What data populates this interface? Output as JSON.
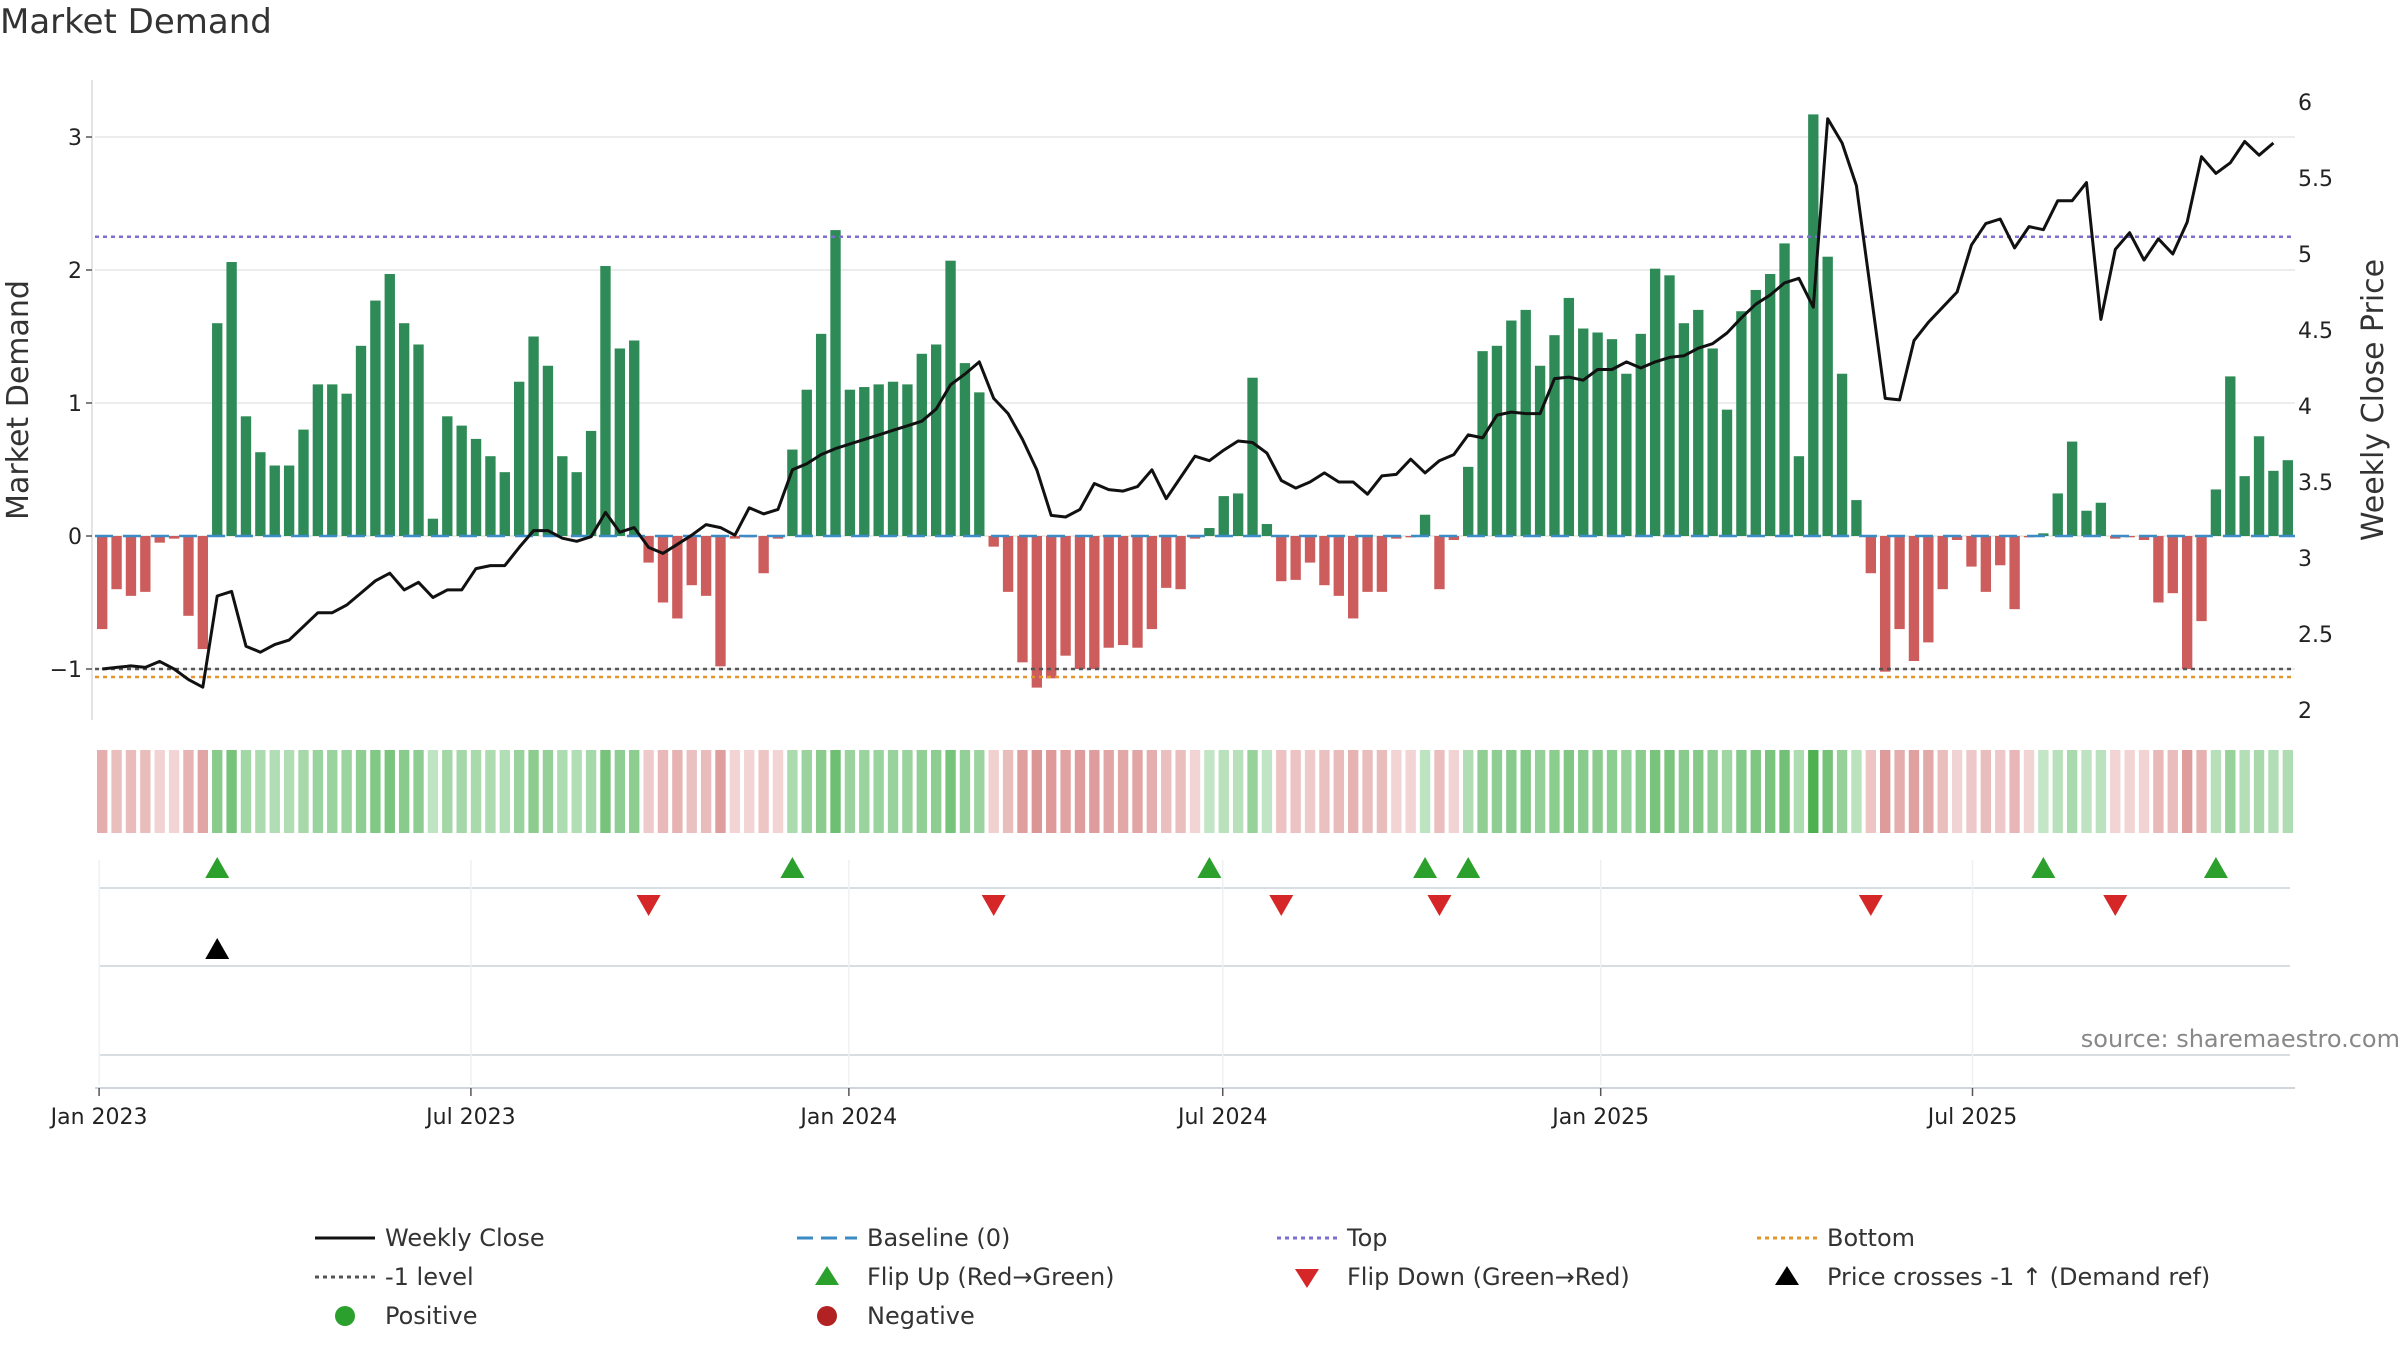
{
  "title": "Market Demand",
  "source": "source: sharemaestro.com",
  "legend": [
    {
      "label": "Weekly Close",
      "kind": "line",
      "color": "#111111"
    },
    {
      "label": "Baseline (0)",
      "kind": "dash",
      "color": "#3b8bc6"
    },
    {
      "label": "Top",
      "kind": "dot",
      "color": "#7b6fd0"
    },
    {
      "label": "Bottom",
      "kind": "dot",
      "color": "#e3952b"
    },
    {
      "label": "-1 level",
      "kind": "dot",
      "color": "#555555"
    },
    {
      "label": "Flip Up (Red→Green)",
      "kind": "tri-up",
      "color": "#2ca02c"
    },
    {
      "label": "Flip Down (Green→Red)",
      "kind": "tri-down",
      "color": "#d62728"
    },
    {
      "label": "Price crosses -1 ↑ (Demand ref)",
      "kind": "tri-up",
      "color": "#000000"
    },
    {
      "label": "Positive",
      "kind": "circle",
      "color": "#2ca02c"
    },
    {
      "label": "Negative",
      "kind": "circle",
      "color": "#b22222"
    }
  ],
  "chart_data": {
    "type": "bar",
    "title": "Market Demand",
    "ylabel": "Market Demand",
    "y2label": "Weekly Close Price",
    "ylim": [
      -1.35,
      3.4
    ],
    "y2lim": [
      2.0,
      6.15
    ],
    "yticks": [
      "−1",
      "0",
      "1",
      "2",
      "3"
    ],
    "y2ticks": [
      "2",
      "2.5",
      "3",
      "3.5",
      "4",
      "4.5",
      "5",
      "5.5",
      "6"
    ],
    "xticks": [
      "Jan 2023",
      "Jul 2023",
      "Jan 2024",
      "Jul 2024",
      "Jan 2025",
      "Jul 2025"
    ],
    "reference_lines": {
      "baseline": 0,
      "top": 2.25,
      "bottom": -1.06,
      "minus_one": -1
    },
    "grid": true,
    "colors": {
      "positive": "#2e8b57",
      "negative": "#cd5c5c",
      "close": "#111111"
    },
    "demand": [
      -0.7,
      -0.4,
      -0.45,
      -0.42,
      -0.05,
      -0.02,
      -0.6,
      -0.85,
      1.6,
      2.06,
      0.9,
      0.63,
      0.53,
      0.53,
      0.8,
      1.14,
      1.14,
      1.07,
      1.43,
      1.77,
      1.97,
      1.6,
      1.44,
      0.13,
      0.9,
      0.83,
      0.73,
      0.6,
      0.48,
      1.16,
      1.5,
      1.28,
      0.6,
      0.48,
      0.79,
      2.03,
      1.41,
      1.47,
      -0.2,
      -0.5,
      -0.62,
      -0.37,
      -0.45,
      -0.98,
      -0.02,
      -0.01,
      -0.28,
      -0.02,
      0.65,
      1.1,
      1.52,
      2.3,
      1.1,
      1.12,
      1.14,
      1.16,
      1.14,
      1.37,
      1.44,
      2.07,
      1.3,
      1.08,
      -0.08,
      -0.42,
      -0.95,
      -1.14,
      -1.07,
      -0.9,
      -1.0,
      -1.0,
      -0.84,
      -0.82,
      -0.84,
      -0.7,
      -0.39,
      -0.4,
      -0.02,
      0.06,
      0.3,
      0.32,
      1.19,
      0.09,
      -0.34,
      -0.33,
      -0.2,
      -0.37,
      -0.45,
      -0.62,
      -0.42,
      -0.42,
      -0.02,
      -0.01,
      0.16,
      -0.4,
      -0.03,
      0.52,
      1.39,
      1.43,
      1.62,
      1.7,
      1.28,
      1.51,
      1.79,
      1.56,
      1.53,
      1.48,
      1.22,
      1.52,
      2.01,
      1.96,
      1.6,
      1.7,
      1.41,
      0.95,
      1.69,
      1.85,
      1.97,
      2.2,
      0.6,
      3.17,
      2.1,
      1.22,
      0.27,
      -0.28,
      -1.02,
      -0.7,
      -0.94,
      -0.8,
      -0.4,
      -0.03,
      -0.23,
      -0.42,
      -0.22,
      -0.55,
      -0.01,
      0.02,
      0.32,
      0.71,
      0.19,
      0.25,
      -0.02,
      -0.01,
      -0.03,
      -0.5,
      -0.43,
      -1.0,
      -0.64,
      0.35,
      1.2,
      0.45,
      0.75,
      0.49,
      0.57
    ],
    "close": [
      2.27,
      2.28,
      2.29,
      2.28,
      2.32,
      2.27,
      2.2,
      2.15,
      2.75,
      2.78,
      2.42,
      2.38,
      2.43,
      2.46,
      2.55,
      2.64,
      2.64,
      2.69,
      2.77,
      2.85,
      2.9,
      2.79,
      2.84,
      2.74,
      2.79,
      2.79,
      2.93,
      2.95,
      2.95,
      3.07,
      3.18,
      3.18,
      3.13,
      3.11,
      3.14,
      3.3,
      3.17,
      3.2,
      3.07,
      3.03,
      3.09,
      3.15,
      3.22,
      3.2,
      3.15,
      3.33,
      3.29,
      3.32,
      3.58,
      3.62,
      3.68,
      3.72,
      3.75,
      3.78,
      3.81,
      3.84,
      3.87,
      3.9,
      3.98,
      4.14,
      4.21,
      4.29,
      4.05,
      3.95,
      3.78,
      3.58,
      3.28,
      3.27,
      3.32,
      3.49,
      3.45,
      3.44,
      3.47,
      3.58,
      3.39,
      3.53,
      3.67,
      3.64,
      3.71,
      3.77,
      3.76,
      3.69,
      3.51,
      3.46,
      3.5,
      3.56,
      3.5,
      3.5,
      3.42,
      3.54,
      3.55,
      3.65,
      3.56,
      3.64,
      3.68,
      3.81,
      3.79,
      3.94,
      3.96,
      3.95,
      3.95,
      4.18,
      4.19,
      4.17,
      4.24,
      4.24,
      4.29,
      4.25,
      4.29,
      4.32,
      4.33,
      4.38,
      4.41,
      4.48,
      4.58,
      4.67,
      4.73,
      4.81,
      4.84,
      4.65,
      5.89,
      5.73,
      5.45,
      4.75,
      4.05,
      4.04,
      4.43,
      4.55,
      4.65,
      4.75,
      5.06,
      5.2,
      5.23,
      5.04,
      5.18,
      5.16,
      5.35,
      5.35,
      5.47,
      4.57,
      5.03,
      5.14,
      4.96,
      5.1,
      5.0,
      5.21,
      5.64,
      5.53,
      5.6,
      5.74,
      5.65,
      5.73
    ]
  }
}
